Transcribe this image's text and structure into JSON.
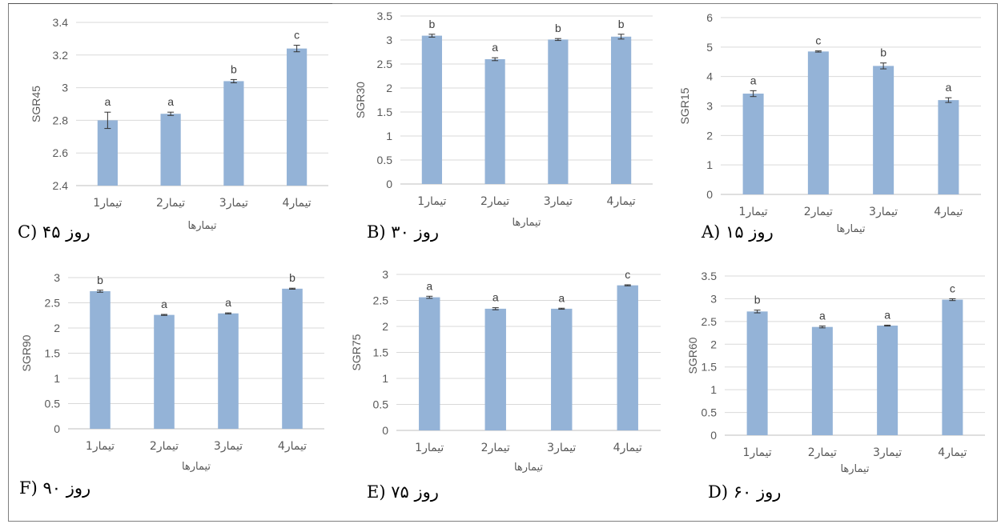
{
  "chart_data": [
    {
      "id": "C",
      "type": "bar",
      "caption": "C) ۴۵ روز",
      "ylabel": "SGR45",
      "xlabel": "تیمارها",
      "categories": [
        "تیمار1",
        "تیمار2",
        "تیمار3",
        "تیمار4"
      ],
      "values": [
        2.8,
        2.84,
        3.04,
        3.24
      ],
      "errors": [
        0.05,
        0.01,
        0.01,
        0.02
      ],
      "letters": [
        "a",
        "a",
        "b",
        "c"
      ],
      "ylim": [
        2.4,
        3.4
      ],
      "yticks": [
        "2.4",
        "2.6",
        "2.8",
        "3",
        "3.2",
        "3.4"
      ],
      "grid": true,
      "bar_color": "#94b3d7"
    },
    {
      "id": "B",
      "type": "bar",
      "caption": "B) ۳۰ روز",
      "ylabel": "SGR30",
      "xlabel": "تیمارها",
      "categories": [
        "تیمار1",
        "تیمار2",
        "تیمار3",
        "تیمار4"
      ],
      "values": [
        3.09,
        2.6,
        3.01,
        3.07
      ],
      "errors": [
        0.03,
        0.03,
        0.02,
        0.05
      ],
      "letters": [
        "b",
        "a",
        "b",
        "b"
      ],
      "ylim": [
        0,
        3.5
      ],
      "yticks": [
        "0",
        "0.5",
        "1",
        "1.5",
        "2",
        "2.5",
        "3",
        "3.5"
      ],
      "grid": true,
      "bar_color": "#94b3d7"
    },
    {
      "id": "A",
      "type": "bar",
      "caption": "A) ۱۵ روز",
      "ylabel": "SGR15",
      "xlabel": "تیمارها",
      "categories": [
        "تیمار1",
        "تیمار2",
        "تیمار3",
        "تیمار4"
      ],
      "values": [
        3.42,
        4.85,
        4.36,
        3.2
      ],
      "errors": [
        0.1,
        0.02,
        0.1,
        0.08
      ],
      "letters": [
        "a",
        "c",
        "b",
        "a"
      ],
      "ylim": [
        0,
        6
      ],
      "yticks": [
        "0",
        "1",
        "2",
        "3",
        "4",
        "5",
        "6"
      ],
      "grid": true,
      "bar_color": "#94b3d7"
    },
    {
      "id": "F",
      "type": "bar",
      "caption": "F) ۹۰ روز",
      "ylabel": "SGR90",
      "xlabel": "تیمارها",
      "categories": [
        "تیمار1",
        "تیمار2",
        "تیمار3",
        "تیمار4"
      ],
      "values": [
        2.73,
        2.26,
        2.29,
        2.78
      ],
      "errors": [
        0.02,
        0.01,
        0.01,
        0.01
      ],
      "letters": [
        "b",
        "a",
        "a",
        "b"
      ],
      "ylim": [
        0,
        3
      ],
      "yticks": [
        "0",
        "0.5",
        "1",
        "1.5",
        "2",
        "2.5",
        "3"
      ],
      "grid": true,
      "bar_color": "#94b3d7"
    },
    {
      "id": "E",
      "type": "bar",
      "caption": "E) ۷۵ روز",
      "ylabel": "SGR75",
      "xlabel": "تیمارها",
      "categories": [
        "تیمار1",
        "تیمار2",
        "تیمار3",
        "تیمار4"
      ],
      "values": [
        2.56,
        2.34,
        2.34,
        2.79
      ],
      "errors": [
        0.02,
        0.02,
        0.01,
        0.01
      ],
      "letters": [
        "a",
        "a",
        "a",
        "c"
      ],
      "ylim": [
        0,
        3
      ],
      "yticks": [
        "0",
        "0.5",
        "1",
        "1.5",
        "2",
        "2.5",
        "3"
      ],
      "grid": true,
      "bar_color": "#94b3d7"
    },
    {
      "id": "D",
      "type": "bar",
      "caption": "D) ۶۰ روز",
      "ylabel": "SGR60",
      "xlabel": "تیمارها",
      "categories": [
        "تیمار1",
        "تیمار2",
        "تیمار3",
        "تیمار4"
      ],
      "values": [
        2.72,
        2.38,
        2.41,
        2.98
      ],
      "errors": [
        0.03,
        0.02,
        0.01,
        0.02
      ],
      "letters": [
        "b",
        "a",
        "a",
        "c"
      ],
      "ylim": [
        0,
        3.5
      ],
      "yticks": [
        "0",
        "0.5",
        "1",
        "1.5",
        "2",
        "2.5",
        "3",
        "3.5"
      ],
      "grid": true,
      "bar_color": "#94b3d7"
    }
  ]
}
